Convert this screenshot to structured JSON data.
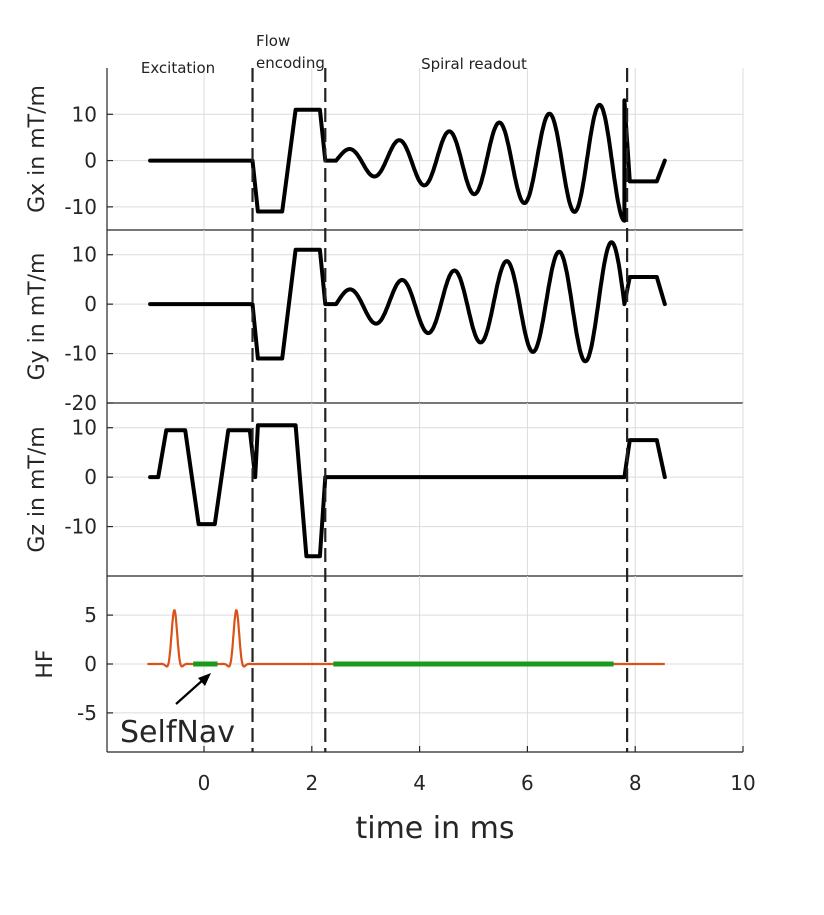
{
  "chart_data": {
    "type": "line",
    "xlabel": "time in ms",
    "x_ticks": [
      0,
      2,
      4,
      6,
      8,
      10
    ],
    "xlim": [
      -1.8,
      10
    ],
    "phase_boundaries": [
      0.9,
      2.25,
      7.85
    ],
    "phases": [
      {
        "label": "Excitation",
        "lines": [
          "Excitation"
        ]
      },
      {
        "label": "Flow encoding",
        "lines": [
          "Flow",
          "encoding"
        ]
      },
      {
        "label": "Spiral readout",
        "lines": [
          "Spiral readout"
        ]
      }
    ],
    "annotation": {
      "text": "SelfNav",
      "points_to": {
        "x": 0.0,
        "y": 0
      }
    },
    "colors": {
      "gradient": "#000000",
      "rf": "#d95319",
      "readout": "#1a9a1a"
    },
    "panels": [
      {
        "name": "Gx",
        "ylabel": "Gx in mT/m",
        "ylim": [
          -15,
          20
        ],
        "yticks": [
          -10,
          0,
          10
        ],
        "series": [
          {
            "name": "Gx",
            "color": "#000000",
            "points": [
              [
                -1.0,
                0
              ],
              [
                0.9,
                0
              ],
              [
                1.0,
                -11
              ],
              [
                1.45,
                -11
              ],
              [
                1.7,
                11
              ],
              [
                2.15,
                11
              ],
              [
                2.25,
                0
              ],
              [
                2.45,
                0
              ]
            ],
            "spiral": {
              "t_start": 2.45,
              "t_end": 7.8,
              "amp_start": 2,
              "amp_end": 13,
              "cycles": 5.75,
              "phase": 0
            },
            "tail": [
              [
                7.8,
                13
              ],
              [
                7.9,
                -4.5
              ],
              [
                8.4,
                -4.5
              ],
              [
                8.55,
                0
              ]
            ]
          }
        ]
      },
      {
        "name": "Gy",
        "ylabel": "Gy in mT/m",
        "ylim": [
          -20,
          15
        ],
        "yticks": [
          -20,
          -10,
          0,
          10
        ],
        "series": [
          {
            "name": "Gy",
            "color": "#000000",
            "points": [
              [
                -1.0,
                0
              ],
              [
                0.9,
                0
              ],
              [
                1.0,
                -11
              ],
              [
                1.45,
                -11
              ],
              [
                1.7,
                11
              ],
              [
                2.15,
                11
              ],
              [
                2.25,
                0
              ],
              [
                2.45,
                0
              ]
            ],
            "spiral": {
              "t_start": 2.45,
              "t_end": 7.8,
              "amp_start": 2.5,
              "amp_end": 13,
              "cycles": 5.5,
              "phase": 0
            },
            "tail": [
              [
                7.8,
                0
              ],
              [
                7.9,
                5.5
              ],
              [
                8.4,
                5.5
              ],
              [
                8.55,
                0
              ]
            ]
          }
        ]
      },
      {
        "name": "Gz",
        "ylabel": "Gz in mT/m",
        "ylim": [
          -20,
          15
        ],
        "yticks": [
          -10,
          0,
          10
        ],
        "series": [
          {
            "name": "Gz",
            "color": "#000000",
            "points": [
              [
                -1.0,
                0
              ],
              [
                -0.85,
                0
              ],
              [
                -0.7,
                9.5
              ],
              [
                -0.35,
                9.5
              ],
              [
                -0.1,
                -9.5
              ],
              [
                0.2,
                -9.5
              ],
              [
                0.45,
                9.5
              ],
              [
                0.85,
                9.5
              ],
              [
                0.95,
                0
              ],
              [
                1.0,
                10.5
              ],
              [
                1.7,
                10.5
              ],
              [
                1.9,
                -16
              ],
              [
                2.15,
                -16
              ],
              [
                2.25,
                0
              ],
              [
                7.8,
                0
              ],
              [
                7.9,
                7.5
              ],
              [
                8.4,
                7.5
              ],
              [
                8.55,
                0
              ]
            ]
          }
        ]
      },
      {
        "name": "HF",
        "ylabel": "HF",
        "ylim": [
          -9,
          9
        ],
        "yticks": [
          -5,
          0,
          5
        ],
        "rf_pulses": [
          {
            "center": -0.55,
            "amp": 5.5
          },
          {
            "center": 0.6,
            "amp": 5.5
          }
        ],
        "rf_span": [
          -1.05,
          8.55
        ],
        "readout_windows": [
          [
            -0.2,
            0.25
          ],
          [
            2.4,
            7.6
          ]
        ]
      }
    ]
  }
}
